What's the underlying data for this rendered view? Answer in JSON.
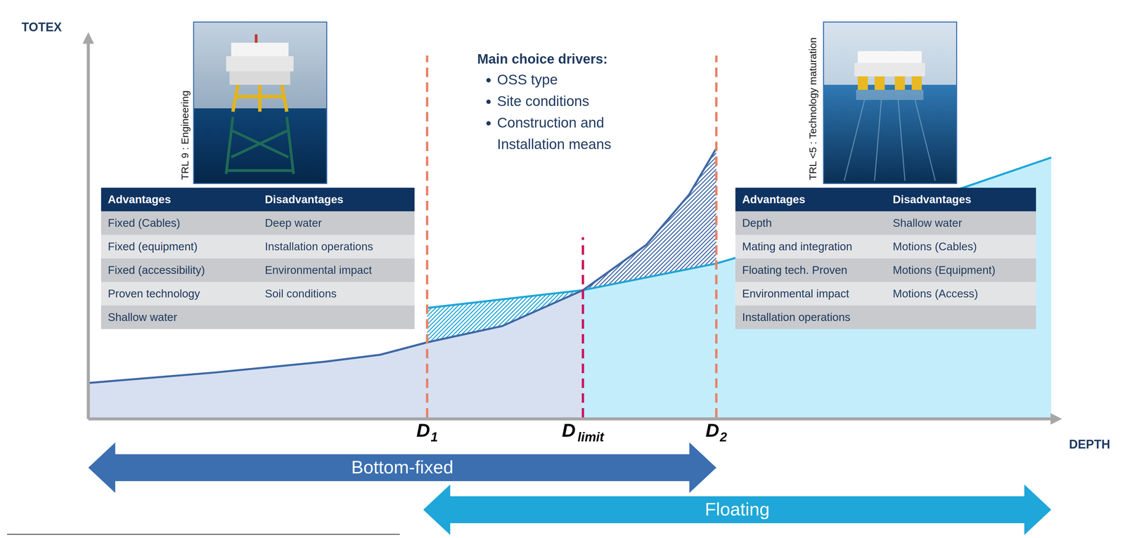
{
  "chart_data": {
    "type": "line",
    "x_label": "DEPTH",
    "y_label": "TOTEX",
    "xlim": [
      0,
      100
    ],
    "ylim": [
      0,
      100
    ],
    "tick_labels": false,
    "grid": false,
    "series": [
      {
        "name": "Bottom-fixed",
        "color": "#3f68a6",
        "x": [
          0,
          13,
          24.3,
          30,
          34.8,
          42.5,
          50.8,
          57.3,
          61.7,
          64.5
        ],
        "values": [
          9.3,
          12,
          14.8,
          16.6,
          19.8,
          24,
          33.3,
          45,
          58,
          70
        ]
      },
      {
        "name": "Floating",
        "color": "#1fa6d6",
        "x": [
          34.8,
          50.8,
          64.5,
          81.7,
          98.9
        ],
        "values": [
          28.7,
          33.3,
          40.2,
          52.8,
          67.6
        ]
      }
    ],
    "markers": [
      {
        "label": "D1",
        "x": 34.8,
        "color": "#e8826a"
      },
      {
        "label": "D limit",
        "x": 50.8,
        "color": "#c8175d"
      },
      {
        "label": "D2",
        "x": 64.5,
        "color": "#e8826a"
      }
    ],
    "ranges": [
      {
        "label": "Bottom-fixed",
        "from": 0,
        "to": 64.5,
        "color": "#3b6fb0"
      },
      {
        "label": "Floating",
        "from": 34.4,
        "to": 98.9,
        "color": "#1ea7d8"
      }
    ],
    "annotation": {
      "title": "Main choice drivers:",
      "items": [
        "OSS type",
        "Site conditions",
        "Construction and Installation means"
      ]
    },
    "panels": [
      {
        "caption": "TRL 9 : Engineering",
        "table": {
          "columns": [
            "Advantages",
            "Disadvantages"
          ],
          "rows": [
            [
              "Fixed (Cables)",
              "Deep water"
            ],
            [
              "Fixed (equipment)",
              "Installation operations"
            ],
            [
              "Fixed (accessibility)",
              "Environmental impact"
            ],
            [
              "Proven technology",
              "Soil conditions"
            ],
            [
              "Shallow water",
              null
            ]
          ]
        }
      },
      {
        "caption": "TRL <5 : Technology maturation",
        "table": {
          "columns": [
            "Advantages",
            "Disadvantages"
          ],
          "rows": [
            [
              "Depth",
              "Shallow water"
            ],
            [
              "Mating and integration",
              "Motions (Cables)"
            ],
            [
              "Floating tech. Proven",
              "Motions (Equipment)"
            ],
            [
              "Environmental impact",
              "Motions (Access)"
            ],
            [
              "Installation operations",
              null
            ]
          ]
        }
      }
    ]
  }
}
